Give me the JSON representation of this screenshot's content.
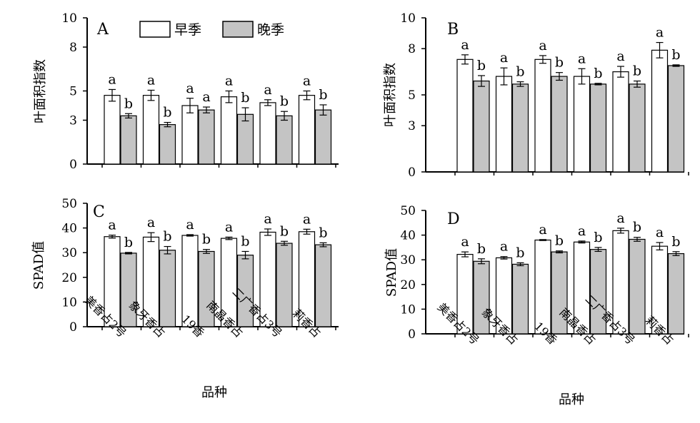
{
  "legend": {
    "early": "早季",
    "late": "晚季"
  },
  "colors": {
    "early": "#ffffff",
    "late": "#c4c4c4",
    "stroke": "#000000"
  },
  "chart_data": [
    {
      "panel": "A",
      "type": "bar",
      "ylabel": "叶面积指数",
      "ylim": [
        0,
        10
      ],
      "yticks": [
        0,
        3,
        5,
        8,
        10
      ],
      "categories": [
        "美香占2号",
        "象牙香占",
        "19香",
        "南晶香占",
        "二广香占3号",
        "莉香占"
      ],
      "series": [
        {
          "name": "早季",
          "values": [
            4.7,
            4.7,
            4.0,
            4.6,
            4.2,
            4.7
          ],
          "errors": [
            0.4,
            0.35,
            0.5,
            0.4,
            0.2,
            0.3
          ],
          "labels": [
            "a",
            "a",
            "a",
            "a",
            "a",
            "a"
          ]
        },
        {
          "name": "晚季",
          "values": [
            3.3,
            2.7,
            3.7,
            3.4,
            3.3,
            3.7
          ],
          "errors": [
            0.15,
            0.15,
            0.2,
            0.45,
            0.3,
            0.35
          ],
          "labels": [
            "b",
            "b",
            "a",
            "b",
            "b",
            "b"
          ]
        }
      ]
    },
    {
      "panel": "B",
      "type": "bar",
      "ylabel": "叶面积指数",
      "ylim": [
        0,
        10
      ],
      "yticks": [
        0,
        3,
        5,
        8,
        10
      ],
      "categories": [
        "美香占2号",
        "象牙香占",
        "19香",
        "南晶香占",
        "二广香占3号",
        "莉香占"
      ],
      "series": [
        {
          "name": "早季",
          "values": [
            7.3,
            6.2,
            7.3,
            6.2,
            6.5,
            7.9
          ],
          "errors": [
            0.3,
            0.55,
            0.25,
            0.5,
            0.35,
            0.5
          ],
          "labels": [
            "a",
            "a",
            "a",
            "a",
            "a",
            "a"
          ]
        },
        {
          "name": "晚季",
          "values": [
            5.9,
            5.7,
            6.2,
            5.7,
            5.7,
            6.9
          ],
          "errors": [
            0.35,
            0.15,
            0.25,
            0.05,
            0.2,
            0.05
          ],
          "labels": [
            "b",
            "b",
            "b",
            "b",
            "b",
            "b"
          ]
        }
      ]
    },
    {
      "panel": "C",
      "type": "bar",
      "ylabel": "SPAD值",
      "ylim": [
        0,
        50
      ],
      "yticks": [
        0,
        10,
        20,
        30,
        40,
        50
      ],
      "categories": [
        "美香占2号",
        "象牙香占",
        "19香",
        "南晶香占",
        "二广香占3号",
        "莉香占"
      ],
      "series": [
        {
          "name": "早季",
          "values": [
            36.5,
            36.3,
            37.0,
            35.8,
            38.3,
            38.5
          ],
          "errors": [
            0.6,
            1.8,
            0.3,
            0.5,
            1.3,
            1.0
          ],
          "labels": [
            "a",
            "a",
            "a",
            "a",
            "a",
            "a"
          ]
        },
        {
          "name": "晚季",
          "values": [
            29.8,
            31.0,
            30.5,
            29.0,
            33.8,
            33.2
          ],
          "errors": [
            0.3,
            1.5,
            0.8,
            1.5,
            0.8,
            0.8
          ],
          "labels": [
            "b",
            "b",
            "b",
            "b",
            "b",
            "b"
          ]
        }
      ],
      "xlabel": "品种"
    },
    {
      "panel": "D",
      "type": "bar",
      "ylabel": "SPAD值",
      "ylim": [
        0,
        50
      ],
      "yticks": [
        0,
        10,
        20,
        30,
        40,
        50
      ],
      "categories": [
        "美香占2号",
        "象牙香占",
        "19香",
        "南晶香占",
        "二广香占3号",
        "莉香占"
      ],
      "series": [
        {
          "name": "早季",
          "values": [
            32.2,
            30.8,
            38.0,
            37.2,
            41.8,
            35.5
          ],
          "errors": [
            1.0,
            0.5,
            0.2,
            0.4,
            1.0,
            1.5
          ],
          "labels": [
            "a",
            "a",
            "a",
            "a",
            "a",
            "a"
          ]
        },
        {
          "name": "晚季",
          "values": [
            29.4,
            28.2,
            33.2,
            34.2,
            38.3,
            32.5
          ],
          "errors": [
            1.0,
            0.6,
            0.4,
            0.8,
            0.8,
            0.8
          ],
          "labels": [
            "b",
            "b",
            "b",
            "b",
            "b",
            "b"
          ]
        }
      ],
      "xlabel": "品种"
    }
  ]
}
